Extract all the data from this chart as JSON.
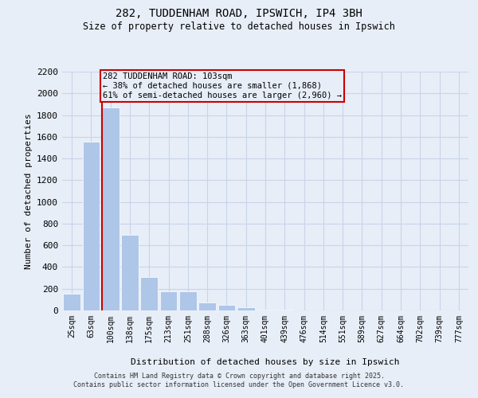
{
  "title_line1": "282, TUDDENHAM ROAD, IPSWICH, IP4 3BH",
  "title_line2": "Size of property relative to detached houses in Ipswich",
  "xlabel": "Distribution of detached houses by size in Ipswich",
  "ylabel": "Number of detached properties",
  "categories": [
    "25sqm",
    "63sqm",
    "100sqm",
    "138sqm",
    "175sqm",
    "213sqm",
    "251sqm",
    "288sqm",
    "326sqm",
    "363sqm",
    "401sqm",
    "439sqm",
    "476sqm",
    "514sqm",
    "551sqm",
    "589sqm",
    "627sqm",
    "664sqm",
    "702sqm",
    "739sqm",
    "777sqm"
  ],
  "values": [
    155,
    1555,
    1868,
    695,
    305,
    175,
    175,
    75,
    50,
    28,
    10,
    5,
    3,
    2,
    1,
    1,
    0,
    0,
    0,
    0,
    0
  ],
  "bar_color": "#aec6e8",
  "bar_edgecolor": "#ffffff",
  "grid_color": "#c8d4e8",
  "bg_color": "#e8eef8",
  "vline_color": "#cc0000",
  "annotation_text": "282 TUDDENHAM ROAD: 103sqm\n← 38% of detached houses are smaller (1,868)\n61% of semi-detached houses are larger (2,960) →",
  "annotation_box_edgecolor": "#cc0000",
  "ylim": [
    0,
    2200
  ],
  "yticks": [
    0,
    200,
    400,
    600,
    800,
    1000,
    1200,
    1400,
    1600,
    1800,
    2000,
    2200
  ],
  "footer_line1": "Contains HM Land Registry data © Crown copyright and database right 2025.",
  "footer_line2": "Contains public sector information licensed under the Open Government Licence v3.0.",
  "figsize": [
    6.0,
    5.0
  ],
  "dpi": 100
}
